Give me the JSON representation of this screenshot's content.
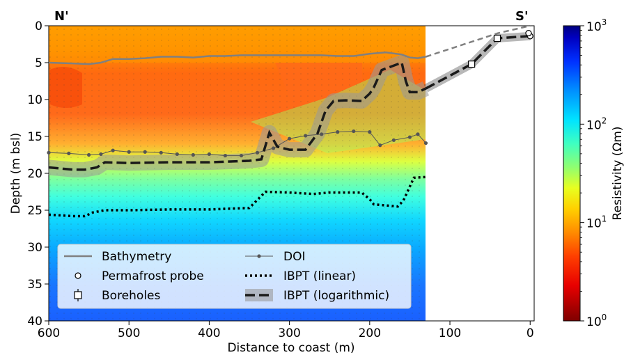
{
  "chart_data": {
    "type": "line",
    "xlabel": "Distance to coast (m)",
    "ylabel": "Depth (m bsl)",
    "xlim": [
      600,
      -5
    ],
    "ylim": [
      40,
      0
    ],
    "x_ticks": [
      "600",
      "500",
      "400",
      "300",
      "200",
      "100",
      "0"
    ],
    "x_tick_values": [
      600,
      500,
      400,
      300,
      200,
      100,
      0
    ],
    "y_ticks": [
      "0",
      "5",
      "10",
      "15",
      "20",
      "25",
      "30",
      "35",
      "40"
    ],
    "y_tick_values": [
      0,
      5,
      10,
      15,
      20,
      25,
      30,
      35,
      40
    ],
    "corner_labels": {
      "left": "N'",
      "right": "S'"
    },
    "colorbar": {
      "label": "Resistivity (Ωm)",
      "scale": "log",
      "range": [
        1,
        1000
      ],
      "tick_labels": [
        {
          "base": "10",
          "exp": "0",
          "value": 1
        },
        {
          "base": "10",
          "exp": "1",
          "value": 10
        },
        {
          "base": "10",
          "exp": "2",
          "value": 100
        },
        {
          "base": "10",
          "exp": "3",
          "value": 1000
        }
      ]
    },
    "legend_position": "lower-left",
    "series": [
      {
        "name": "Bathymetry",
        "style": "solid",
        "color": "#808080",
        "x": [
          600,
          570,
          550,
          535,
          520,
          500,
          480,
          460,
          440,
          420,
          400,
          380,
          360,
          340,
          320,
          300,
          280,
          260,
          240,
          220,
          200,
          180,
          160,
          150,
          140,
          130
        ],
        "y": [
          5.0,
          5.1,
          5.2,
          5.0,
          4.5,
          4.5,
          4.4,
          4.2,
          4.2,
          4.3,
          4.1,
          4.1,
          4.0,
          4.0,
          4.0,
          4.0,
          4.0,
          4.0,
          4.1,
          4.1,
          3.8,
          3.6,
          3.9,
          4.3,
          4.4,
          4.2
        ]
      },
      {
        "name": "Bathymetry (extrapolated)",
        "style": "dashed",
        "color": "#808080",
        "x": [
          130,
          40,
          0
        ],
        "y": [
          4.2,
          1.0,
          0.0
        ]
      },
      {
        "name": "Permafrost probe",
        "style": "marker-circle",
        "x": [
          0,
          2
        ],
        "y": [
          1.4,
          1.0
        ]
      },
      {
        "name": "Boreholes",
        "style": "marker-square",
        "x": [
          73,
          41
        ],
        "y": [
          5.2,
          1.7
        ]
      },
      {
        "name": "DOI",
        "style": "line-dots",
        "color": "#555555",
        "x": [
          600,
          575,
          550,
          535,
          520,
          500,
          480,
          460,
          440,
          420,
          400,
          380,
          360,
          340,
          320,
          300,
          280,
          260,
          240,
          220,
          200,
          187,
          170,
          150,
          140,
          130
        ],
        "y": [
          17.2,
          17.3,
          17.5,
          17.4,
          16.9,
          17.1,
          17.1,
          17.2,
          17.4,
          17.5,
          17.4,
          17.6,
          17.6,
          17.2,
          16.6,
          15.3,
          14.9,
          14.7,
          14.4,
          14.3,
          14.4,
          16.2,
          15.5,
          15.1,
          14.7,
          15.9
        ]
      },
      {
        "name": "IBPT (linear)",
        "style": "dotted",
        "color": "#000000",
        "x": [
          600,
          570,
          555,
          545,
          530,
          500,
          450,
          400,
          350,
          340,
          330,
          300,
          270,
          250,
          210,
          200,
          195,
          165,
          158,
          145,
          130
        ],
        "y": [
          25.6,
          25.8,
          25.8,
          25.3,
          25.0,
          25.0,
          24.9,
          24.9,
          24.7,
          23.6,
          22.5,
          22.6,
          22.8,
          22.6,
          22.6,
          23.5,
          24.2,
          24.5,
          23.7,
          20.6,
          20.5
        ]
      },
      {
        "name": "IBPT (logarithmic)",
        "style": "dashed-band",
        "color": "#1a1a1a",
        "band_color": "#999999",
        "x": [
          600,
          570,
          555,
          540,
          530,
          500,
          450,
          400,
          350,
          335,
          325,
          315,
          300,
          280,
          265,
          255,
          245,
          230,
          210,
          200,
          195,
          185,
          160,
          155,
          150,
          140,
          130
        ],
        "y": [
          19.2,
          19.5,
          19.5,
          19.2,
          18.5,
          18.6,
          18.5,
          18.5,
          18.3,
          18.1,
          14.5,
          16.4,
          16.8,
          16.8,
          14.6,
          11.5,
          10.2,
          10.1,
          10.2,
          9.2,
          8.4,
          6.0,
          5.0,
          7.5,
          9.0,
          9.0,
          8.5
        ]
      },
      {
        "name": "IBPT (logarithmic) extension",
        "style": "dashed",
        "x": [
          130,
          73,
          41,
          0
        ],
        "y": [
          8.5,
          5.2,
          1.7,
          1.4
        ]
      }
    ],
    "legend": [
      {
        "label": "Bathymetry",
        "symbol": "solid"
      },
      {
        "label": "Permafrost probe",
        "symbol": "circle"
      },
      {
        "label": "Boreholes",
        "symbol": "square"
      },
      {
        "label": "DOI",
        "symbol": "line-dot"
      },
      {
        "label": "IBPT (linear)",
        "symbol": "dotted"
      },
      {
        "label": "IBPT (logarithmic)",
        "symbol": "dashed-band"
      }
    ]
  }
}
